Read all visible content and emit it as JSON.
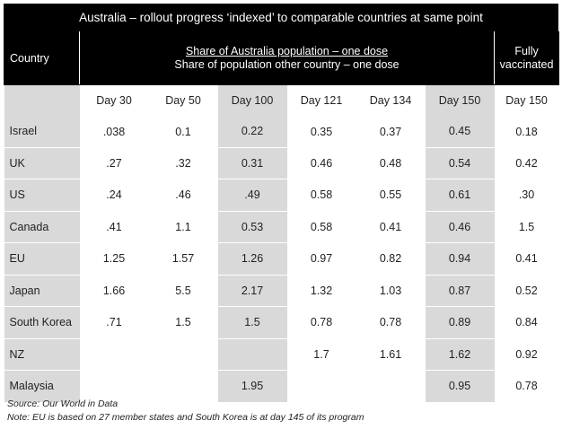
{
  "title": "Australia – rollout progress ‘indexed’ to comparable countries at same point",
  "header": {
    "country": "Country",
    "share_top": "Share of Australia population – one dose",
    "share_bottom": "Share of population other country – one dose",
    "fully_line1": "Fully",
    "fully_line2": "vaccinated"
  },
  "days": [
    "Day 30",
    "Day 50",
    "Day 100",
    "Day 121",
    "Day 134",
    "Day 150",
    "Day 150"
  ],
  "rows": [
    {
      "country": "Israel",
      "values": [
        ".038",
        "0.1",
        "0.22",
        "0.35",
        "0.37",
        "0.45",
        "0.18"
      ]
    },
    {
      "country": "UK",
      "values": [
        ".27",
        ".32",
        "0.31",
        "0.46",
        "0.48",
        "0.54",
        "0.42"
      ]
    },
    {
      "country": "US",
      "values": [
        ".24",
        ".46",
        ".49",
        "0.58",
        "0.55",
        "0.61",
        ".30"
      ]
    },
    {
      "country": "Canada",
      "values": [
        ".41",
        "1.1",
        "0.53",
        "0.58",
        "0.41",
        "0.46",
        "1.5"
      ]
    },
    {
      "country": "EU",
      "values": [
        "1.25",
        "1.57",
        "1.26",
        "0.97",
        "0.82",
        "0.94",
        "0.41"
      ]
    },
    {
      "country": "Japan",
      "values": [
        "1.66",
        "5.5",
        "2.17",
        "1.32",
        "1.03",
        "0.87",
        "0.52"
      ]
    },
    {
      "country": "South Korea",
      "values": [
        ".71",
        "1.5",
        "1.5",
        "0.78",
        "0.78",
        "0.89",
        "0.84"
      ]
    },
    {
      "country": "NZ",
      "values": [
        "",
        "",
        "",
        "1.7",
        "1.61",
        "1.62",
        "0.92"
      ]
    },
    {
      "country": "Malaysia",
      "values": [
        "",
        "",
        "1.95",
        "",
        "",
        "0.95",
        "0.78"
      ]
    }
  ],
  "notes": {
    "source": "Source: Our World in Data",
    "note": "Note: EU is based on 27 member states and South Korea is at day 145 of its program"
  }
}
